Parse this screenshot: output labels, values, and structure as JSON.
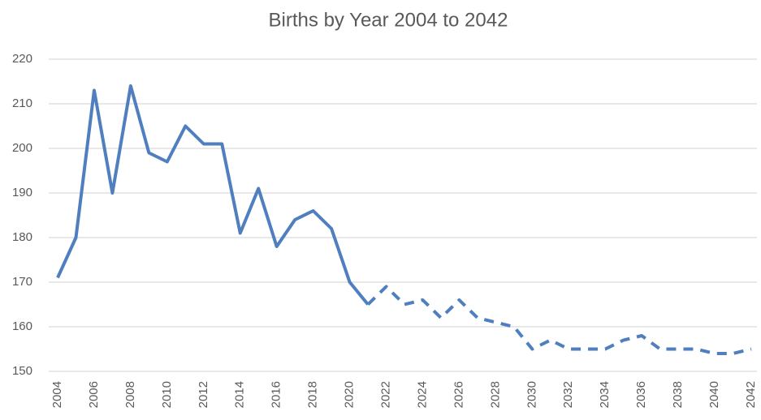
{
  "chart_data": {
    "type": "line",
    "title": "Births by Year 2004 to 2042",
    "x": [
      2004,
      2005,
      2006,
      2007,
      2008,
      2009,
      2010,
      2011,
      2012,
      2013,
      2014,
      2015,
      2016,
      2017,
      2018,
      2019,
      2020,
      2021,
      2022,
      2023,
      2024,
      2025,
      2026,
      2027,
      2028,
      2029,
      2030,
      2031,
      2032,
      2033,
      2034,
      2035,
      2036,
      2037,
      2038,
      2039,
      2040,
      2041,
      2042
    ],
    "series": [
      {
        "color": "#4f7fbf",
        "dashed": false,
        "values": [
          171,
          180,
          213,
          190,
          214,
          199,
          197,
          205,
          201,
          201,
          181,
          191,
          178,
          184,
          186,
          182,
          170,
          165,
          null,
          null,
          null,
          null,
          null,
          null,
          null,
          null,
          null,
          null,
          null,
          null,
          null,
          null,
          null,
          null,
          null,
          null,
          null,
          null,
          null
        ]
      },
      {
        "color": "#4f7fbf",
        "dashed": true,
        "values": [
          null,
          null,
          null,
          null,
          null,
          null,
          null,
          null,
          null,
          null,
          null,
          null,
          null,
          null,
          null,
          null,
          null,
          165,
          169,
          165,
          166,
          162,
          166,
          162,
          161,
          160,
          155,
          157,
          155,
          155,
          155,
          157,
          158,
          155,
          155,
          155,
          154,
          154,
          155
        ]
      }
    ],
    "xlim": [
      2004,
      2042
    ],
    "xticks": [
      2004,
      2006,
      2008,
      2010,
      2012,
      2014,
      2016,
      2018,
      2020,
      2022,
      2024,
      2026,
      2028,
      2030,
      2032,
      2034,
      2036,
      2038,
      2040,
      2042
    ],
    "ylim": [
      150,
      220
    ],
    "yticks": [
      150,
      160,
      170,
      180,
      190,
      200,
      210,
      220
    ],
    "grid": true
  }
}
